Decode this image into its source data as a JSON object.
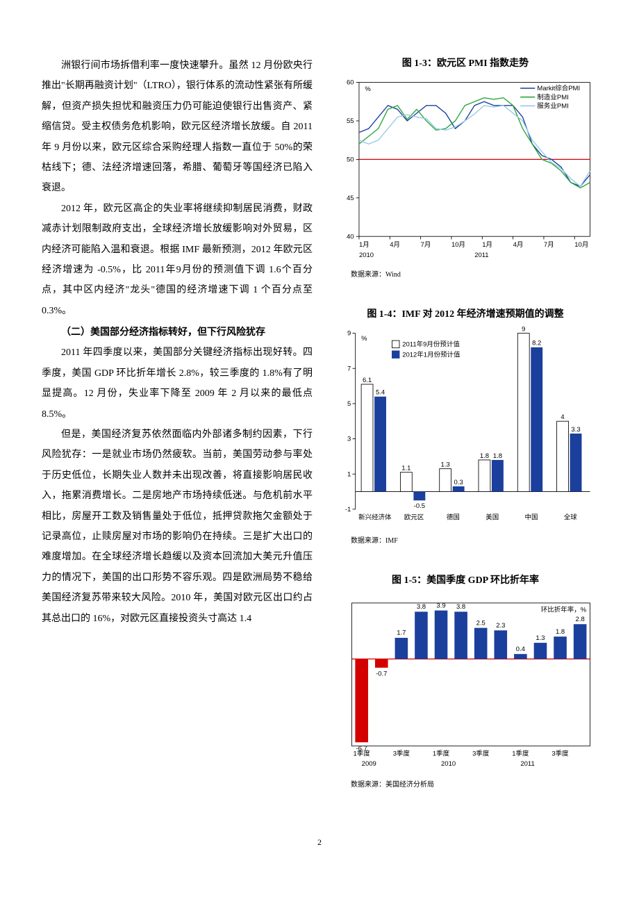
{
  "text": {
    "para1": "洲银行间市场拆借利率一度快速攀升。虽然 12 月份欧央行推出\"长期再融资计划\"（LTRO），银行体系的流动性紧张有所缓解，但资产损失担忧和融资压力仍可能迫使银行出售资产、紧缩信贷。受主权债务危机影响，欧元区经济增长放缓。自 2011 年 9 月份以来，欧元区综合采购经理人指数一直位于 50%的荣枯线下；德、法经济增速回落，希腊、葡萄牙等国经济已陷入衰退。",
    "para2": "2012 年，欧元区高企的失业率将继续抑制居民消费，财政减赤计划限制政府支出，全球经济增长放缓影响对外贸易，区内经济可能陷入温和衰退。根据 IMF 最新预测，2012 年欧元区经济增速为 -0.5%，比 2011年9月份的预测值下调 1.6个百分点，其中区内经济\"龙头\"德国的经济增速下调 1 个百分点至 0.3%。",
    "heading2": "（二）美国部分经济指标转好，但下行风险犹存",
    "para3": "2011 年四季度以来，美国部分关键经济指标出现好转。四季度，美国 GDP 环比折年增长 2.8%，较三季度的 1.8%有了明显提高。12 月份，失业率下降至 2009 年 2 月以来的最低点 8.5%。",
    "para4": "但是，美国经济复苏依然面临内外部诸多制约因素，下行风险犹存：一是就业市场仍然疲软。当前，美国劳动参与率处于历史低位，长期失业人数并未出现改善，将直接影响居民收入，拖累消费增长。二是房地产市场持续低迷。与危机前水平相比，房屋开工数及销售量处于低位，抵押贷款拖欠金额处于记录高位，止赎房屋对市场的影响仍在持续。三是扩大出口的难度增加。在全球经济增长趋缓以及资本回流加大美元升值压力的情况下，美国的出口形势不容乐观。四是欧洲局势不稳给美国经济复苏带来较大风险。2010 年，美国对欧元区出口约占其总出口的 16%，对欧元区直接投资头寸高达 1.4"
  },
  "chart13": {
    "title": "图 1-3：欧元区 PMI 指数走势",
    "source": "数据来源：Wind",
    "y_unit": "%",
    "ylim": [
      40,
      60
    ],
    "ytick_step": 5,
    "x_labels_top": [
      "1月",
      "4月",
      "7月",
      "10月",
      "1月",
      "4月",
      "7月",
      "10月"
    ],
    "x_labels_bottom": [
      "2010",
      "2011"
    ],
    "ref_line": 50,
    "ref_color": "#d40000",
    "legend": [
      {
        "label": "Markit综合PMI",
        "color": "#1b3f9c"
      },
      {
        "label": "制造业PMI",
        "color": "#2aa63a"
      },
      {
        "label": "服务业PMI",
        "color": "#98c8e8"
      }
    ],
    "bg": "#ffffff",
    "series": {
      "comp": [
        53.5,
        54,
        55.5,
        57,
        56.5,
        55,
        56,
        57,
        57,
        56,
        54,
        55,
        57,
        57.5,
        57,
        57,
        57,
        55.5,
        52,
        50.5,
        50,
        49,
        47,
        46.5,
        48
      ],
      "manuf": [
        52,
        53,
        54,
        56.5,
        57,
        55.2,
        56.5,
        55,
        53.8,
        54,
        55,
        57,
        57.5,
        58,
        57.8,
        58,
        57,
        54,
        52,
        50,
        49.5,
        48.5,
        47,
        46.3,
        47
      ],
      "serv": [
        52.5,
        52,
        52.5,
        54,
        55.5,
        55.8,
        55.5,
        55.3,
        54,
        53.8,
        54.2,
        55,
        55.9,
        57,
        56.8,
        57,
        56,
        55,
        52.5,
        51,
        49.6,
        48.8,
        47.5,
        46.5,
        48.5
      ]
    }
  },
  "chart14": {
    "title": "图 1-4：IMF 对 2012 年经济增速预期值的调整",
    "source": "数据来源：IMF",
    "y_unit": "%",
    "ylim": [
      -1,
      9
    ],
    "ytick_step": 2,
    "categories": [
      "新兴经济体",
      "欧元区",
      "德国",
      "美国",
      "中国",
      "全球"
    ],
    "legend": [
      {
        "label": "2011年9月份预计值",
        "fill": "#ffffff",
        "stroke": "#000000"
      },
      {
        "label": "2012年1月份预计值",
        "fill": "#1b3f9c",
        "stroke": "#1b3f9c"
      }
    ],
    "series_sep": [
      6.1,
      1.1,
      1.3,
      1.8,
      9.0,
      4.0
    ],
    "series_jan": [
      5.4,
      -0.5,
      0.3,
      1.8,
      8.2,
      3.3
    ],
    "bar_fill_sep": "#ffffff",
    "bar_stroke_sep": "#000000",
    "bar_fill_jan": "#1b3f9c",
    "bg": "#ffffff"
  },
  "chart15": {
    "title": "图 1-5：美国季度 GDP 环比折年率",
    "source": "数据来源：美国经济分析局",
    "y_unit": "环比折年率，%",
    "ylim": [
      -7,
      4.5
    ],
    "x_labels_top": [
      "1季度",
      "3季度",
      "1季度",
      "3季度",
      "1季度",
      "3季度"
    ],
    "x_labels_bottom": [
      "2009",
      "2010",
      "2011"
    ],
    "values": [
      -6.7,
      -0.7,
      1.7,
      3.8,
      3.9,
      3.8,
      2.5,
      2.3,
      0.4,
      1.3,
      1.8,
      2.8
    ],
    "pos_color": "#1b3f9c",
    "neg_color": "#d40000",
    "baseline_color": "#d40000",
    "bg": "#ffffff"
  },
  "pagenum": "2"
}
